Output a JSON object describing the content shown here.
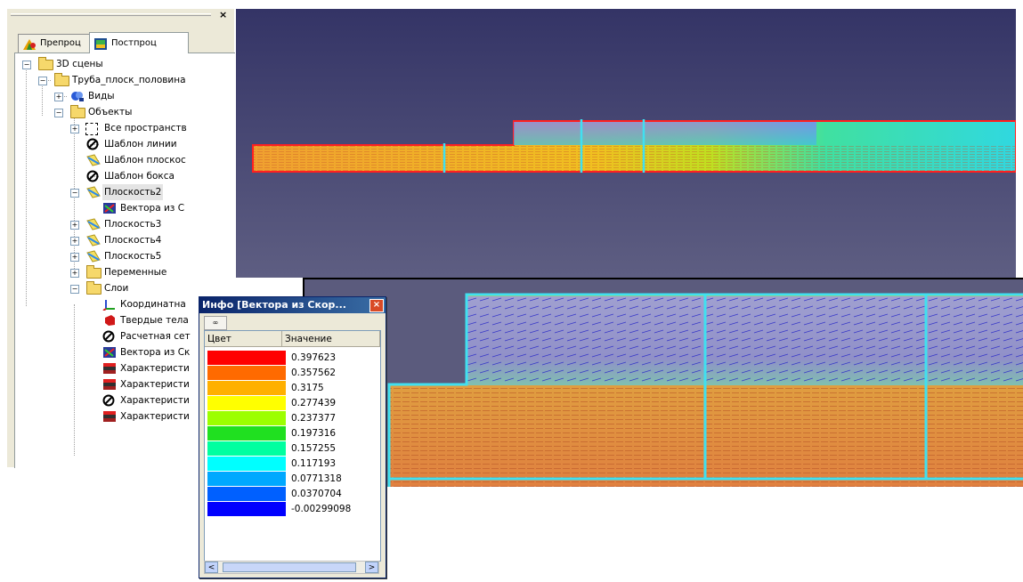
{
  "panel": {
    "close_glyph": "×",
    "tabs": [
      {
        "label": "Препроц",
        "icon": "preprocessor-icon",
        "active": false
      },
      {
        "label": "Постпроц",
        "icon": "postprocessor-icon",
        "active": true
      }
    ]
  },
  "tree": {
    "root": "3D сцены",
    "project": "Труба_плоск_половина",
    "views": "Виды",
    "objects": "Объекты",
    "objects_items": [
      "Все пространств",
      "Шаблон линии",
      "Шаблон плоскос",
      "Шаблон бокса"
    ],
    "plane2": "Плоскость2",
    "plane2_child": "Вектора из С",
    "planes": [
      "Плоскость3",
      "Плоскость4",
      "Плоскость5"
    ],
    "variables": "Переменные",
    "layers": "Слои",
    "layers_items": [
      "Координатна",
      "Твердые тела",
      "Расчетная сет",
      "Вектора из Ск",
      "Характеристи",
      "Характеристи",
      "Характеристи",
      "Характеристи"
    ],
    "expander_plus": "+",
    "expander_minus": "−"
  },
  "info": {
    "title": "Инфо [Вектора из Скор...",
    "close_glyph": "×",
    "tool_label": "∞",
    "col_color": "Цвет",
    "col_value": "Значение",
    "rows": [
      {
        "color": "#ff0000",
        "value": "0.397623"
      },
      {
        "color": "#ff6a00",
        "value": "0.357562"
      },
      {
        "color": "#ffb000",
        "value": "0.3175"
      },
      {
        "color": "#ffff00",
        "value": "0.277439"
      },
      {
        "color": "#9cff00",
        "value": "0.237377"
      },
      {
        "color": "#20e020",
        "value": "0.197316"
      },
      {
        "color": "#00ffa0",
        "value": "0.157255"
      },
      {
        "color": "#00ffff",
        "value": "0.117193"
      },
      {
        "color": "#00a8ff",
        "value": "0.0771318"
      },
      {
        "color": "#0060ff",
        "value": "0.0370704"
      },
      {
        "color": "#0000ff",
        "value": "-0.00299098"
      }
    ],
    "scroll_left": "<",
    "scroll_right": ">"
  },
  "scene": {
    "outline_color": "#ff2020",
    "section_color": "#40e0f0",
    "viewport_bg": "#4a4a72"
  }
}
